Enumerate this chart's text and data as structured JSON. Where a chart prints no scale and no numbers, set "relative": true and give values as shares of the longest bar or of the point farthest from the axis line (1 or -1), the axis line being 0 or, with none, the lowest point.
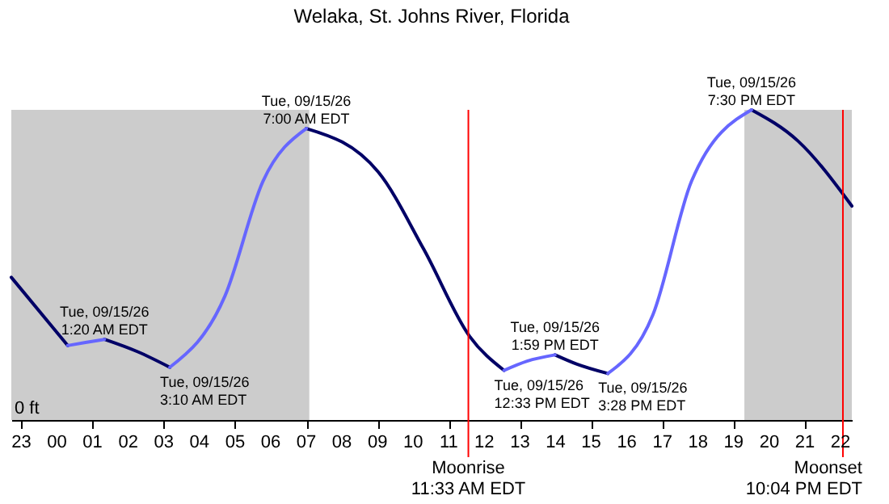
{
  "chart_data": {
    "type": "line",
    "title": "Welaka, St. Johns River, Florida",
    "relative": true,
    "x": [
      "--09-14T22:43",
      "--09-15T00:18",
      "--09-15T00:48",
      "--09-15T01:20",
      "--09-15T02:16",
      "--09-15T03:10",
      "--09-15T04:43",
      "--09-15T05:47",
      "--09-15T07:00",
      "--09-15T09:01",
      "--09-15T10:18",
      "--09-15T11:35",
      "--09-15T12:33",
      "--09-15T13:12",
      "--09-15T13:59",
      "--09-15T14:36",
      "--09-15T15:28",
      "--09-15T16:44",
      "--09-15T17:49",
      "--09-15T19:30",
      "--09-15T20:48",
      "--09-15T22:19"
    ],
    "series": [
      {
        "color": "#000066",
        "values": [
          0.46,
          0.24,
          null,
          0.26,
          0.22,
          0.17,
          null,
          null,
          0.94,
          0.8,
          0.55,
          0.27,
          0.16,
          null,
          0.21,
          0.18,
          0.15,
          null,
          null,
          1.0,
          0.9,
          0.69
        ]
      },
      {
        "color": "#6666ff",
        "values": [
          null,
          0.24,
          0.25,
          0.26,
          null,
          0.17,
          0.4,
          0.77,
          0.94,
          null,
          null,
          null,
          0.16,
          0.19,
          0.21,
          null,
          0.15,
          0.34,
          0.77,
          1.0,
          null,
          null
        ]
      }
    ],
    "xlim": [
      "--09-14T22:43",
      "--09-15T22:19"
    ],
    "xticks": [
      {
        "value": "--09-14T23:00",
        "label": "23"
      },
      {
        "value": "--09-15T00:00",
        "label": "00"
      },
      {
        "value": "--09-15T01:00",
        "label": "01"
      },
      {
        "value": "--09-15T02:00",
        "label": "02"
      },
      {
        "value": "--09-15T03:00",
        "label": "03"
      },
      {
        "value": "--09-15T04:00",
        "label": "04"
      },
      {
        "value": "--09-15T05:00",
        "label": "05"
      },
      {
        "value": "--09-15T06:00",
        "label": "06"
      },
      {
        "value": "--09-15T07:00",
        "label": "07"
      },
      {
        "value": "--09-15T08:00",
        "label": "08"
      },
      {
        "value": "--09-15T09:00",
        "label": "09"
      },
      {
        "value": "--09-15T10:00",
        "label": "10"
      },
      {
        "value": "--09-15T11:00",
        "label": "11"
      },
      {
        "value": "--09-15T12:00",
        "label": "12"
      },
      {
        "value": "--09-15T13:00",
        "label": "13"
      },
      {
        "value": "--09-15T14:00",
        "label": "14"
      },
      {
        "value": "--09-15T15:00",
        "label": "15"
      },
      {
        "value": "--09-15T16:00",
        "label": "16"
      },
      {
        "value": "--09-15T17:00",
        "label": "17"
      },
      {
        "value": "--09-15T18:00",
        "label": "18"
      },
      {
        "value": "--09-15T19:00",
        "label": "19"
      },
      {
        "value": "--09-15T20:00",
        "label": "20"
      },
      {
        "value": "--09-15T21:00",
        "label": "21"
      },
      {
        "value": "--09-15T22:00",
        "label": "22"
      }
    ],
    "bands": [
      {
        "axis": "x",
        "from": "--09-14T22:43",
        "to": "--09-15T07:05",
        "color": "#cccccc"
      },
      {
        "axis": "x",
        "from": "--09-15T19:18",
        "to": "--09-15T22:19",
        "color": "#cccccc"
      }
    ],
    "ref_lines": [
      {
        "axis": "x",
        "value": "--09-15T11:33",
        "label": "Moonrise\n11:33 AM EDT",
        "color": "#ff0000"
      },
      {
        "axis": "x",
        "value": "--09-15T22:04",
        "label": "Moonset\n10:04 PM EDT",
        "color": "#ff0000"
      }
    ],
    "annotations": [
      "0 ft",
      {
        "text": "Tue, 09/15/26\n1:20 AM EDT",
        "x": "--09-15T01:20",
        "y": 0.26
      },
      {
        "text": "Tue, 09/15/26\n3:10 AM EDT",
        "x": "--09-15T03:10",
        "y": 0.17
      },
      {
        "text": "Tue, 09/15/26\n7:00 AM EDT",
        "x": "--09-15T07:00",
        "y": 0.94
      },
      {
        "text": "Tue, 09/15/26\n12:33 PM EDT",
        "x": "--09-15T12:33",
        "y": 0.16
      },
      {
        "text": "Tue, 09/15/26\n1:59 PM EDT",
        "x": "--09-15T13:59",
        "y": 0.21
      },
      {
        "text": "Tue, 09/15/26\n3:28 PM EDT",
        "x": "--09-15T15:28",
        "y": 0.15
      },
      {
        "text": "Tue, 09/15/26\n7:30 PM EDT",
        "x": "--09-15T19:30",
        "y": 1.0
      }
    ],
    "grid": false,
    "line_style": "solid"
  }
}
